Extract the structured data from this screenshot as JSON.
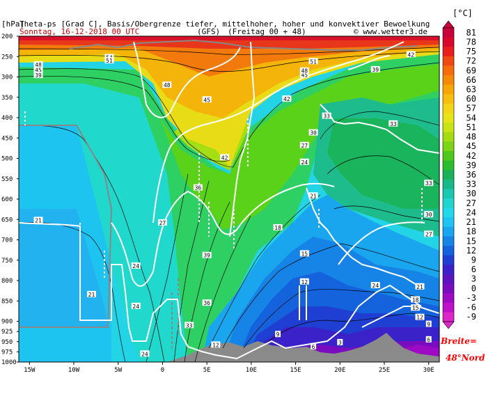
{
  "title_line1": "Theta-ps [Grad C], Basis/Obergrenze tiefer, mittelhoher, hoher und konvektiver Bewoelkung",
  "unit_left": "[hPa]",
  "date_line": "Sonntag, 16-12-2018  00 UTC",
  "model": "(GFS)",
  "forecast": "(Freitag 00 + 48)",
  "copyright": "© www.wetter3.de",
  "colorbar_unit": "[°C]",
  "latitude_note_1": "Breite=",
  "latitude_note_2": "48°Nord",
  "chart_data": {
    "type": "heatmap",
    "title": "Theta-ps [Grad C], Basis/Obergrenze tiefer, mittelhoher, hoher und konvektiver Bewoelkung",
    "x_ticks": [
      "15W",
      "10W",
      "5W",
      "0",
      "5E",
      "10E",
      "15E",
      "20E",
      "25E",
      "30E"
    ],
    "x_values": [
      -15,
      -10,
      -5,
      0,
      5,
      10,
      15,
      20,
      25,
      30
    ],
    "xlim": [
      -16.2,
      31.2
    ],
    "y_ticks": [
      "200",
      "250",
      "300",
      "350",
      "400",
      "450",
      "500",
      "550",
      "600",
      "650",
      "700",
      "750",
      "800",
      "850",
      "900",
      "925",
      "950",
      "975",
      "1000"
    ],
    "y_values": [
      200,
      250,
      300,
      350,
      400,
      450,
      500,
      550,
      600,
      650,
      700,
      750,
      800,
      850,
      900,
      925,
      950,
      975,
      1000
    ],
    "ylim": [
      200,
      1000
    ],
    "ylabel": "[hPa]",
    "colorbar_levels": [
      "81",
      "78",
      "75",
      "72",
      "69",
      "66",
      "63",
      "60",
      "57",
      "54",
      "51",
      "48",
      "45",
      "42",
      "39",
      "36",
      "33",
      "30",
      "27",
      "24",
      "21",
      "18",
      "15",
      "12",
      "9",
      "6",
      "3",
      "0",
      "-3",
      "-6",
      "-9"
    ],
    "colorbar_colors": [
      "#c8003c",
      "#d8082c",
      "#e81e1e",
      "#f04a14",
      "#f46c0c",
      "#f58a08",
      "#f7a608",
      "#f6be10",
      "#f2d418",
      "#e6e418",
      "#c8e414",
      "#a4dc14",
      "#7cd414",
      "#4ec81c",
      "#2cbc30",
      "#1ab05a",
      "#18b888",
      "#1ac8b0",
      "#20d4d0",
      "#22d8e8",
      "#20c4f2",
      "#1aa6ee",
      "#1684e6",
      "#1462dc",
      "#1f3ed2",
      "#3a22c8",
      "#5a14c0",
      "#7a0cc0",
      "#9c0ac4",
      "#be10c6",
      "#dc26c8"
    ],
    "contour_labels": [
      {
        "v": "48",
        "x": -14,
        "p": 270
      },
      {
        "v": "45",
        "x": -14,
        "p": 283
      },
      {
        "v": "39",
        "x": -14,
        "p": 296
      },
      {
        "v": "54",
        "x": -6,
        "p": 252
      },
      {
        "v": "51",
        "x": -6,
        "p": 260
      },
      {
        "v": "48",
        "x": 0.5,
        "p": 320
      },
      {
        "v": "45",
        "x": 5,
        "p": 356
      },
      {
        "v": "42",
        "x": 7,
        "p": 498
      },
      {
        "v": "42",
        "x": 14,
        "p": 354
      },
      {
        "v": "45",
        "x": 16,
        "p": 295
      },
      {
        "v": "48",
        "x": 16,
        "p": 285
      },
      {
        "v": "51",
        "x": 17,
        "p": 262
      },
      {
        "v": "39",
        "x": 24,
        "p": 282
      },
      {
        "v": "42",
        "x": 28,
        "p": 245
      },
      {
        "v": "30",
        "x": 17,
        "p": 437
      },
      {
        "v": "27",
        "x": 16,
        "p": 468
      },
      {
        "v": "24",
        "x": 16,
        "p": 509
      },
      {
        "v": "33",
        "x": 18.5,
        "p": 396
      },
      {
        "v": "33",
        "x": 26,
        "p": 415
      },
      {
        "v": "33",
        "x": 30,
        "p": 561
      },
      {
        "v": "30",
        "x": 30,
        "p": 638
      },
      {
        "v": "27",
        "x": 30,
        "p": 686
      },
      {
        "v": "21",
        "x": -14,
        "p": 652
      },
      {
        "v": "21",
        "x": -8,
        "p": 834
      },
      {
        "v": "27",
        "x": 0,
        "p": 658
      },
      {
        "v": "24",
        "x": -3,
        "p": 764
      },
      {
        "v": "24",
        "x": -3,
        "p": 863
      },
      {
        "v": "24",
        "x": -2,
        "p": 980
      },
      {
        "v": "36",
        "x": 4,
        "p": 572
      },
      {
        "v": "39",
        "x": 5,
        "p": 738
      },
      {
        "v": "36",
        "x": 5,
        "p": 855
      },
      {
        "v": "33",
        "x": 3,
        "p": 910
      },
      {
        "v": "18",
        "x": 13,
        "p": 670
      },
      {
        "v": "15",
        "x": 16,
        "p": 734
      },
      {
        "v": "12",
        "x": 16,
        "p": 803
      },
      {
        "v": "9",
        "x": 13,
        "p": 932
      },
      {
        "v": "6",
        "x": 17,
        "p": 962
      },
      {
        "v": "3",
        "x": 20,
        "p": 952
      },
      {
        "v": "21",
        "x": 17,
        "p": 592
      },
      {
        "v": "24",
        "x": 24,
        "p": 812
      },
      {
        "v": "21",
        "x": 29,
        "p": 815
      },
      {
        "v": "18",
        "x": 28.5,
        "p": 847
      },
      {
        "v": "15",
        "x": 28.5,
        "p": 867
      },
      {
        "v": "12",
        "x": 29,
        "p": 890
      },
      {
        "v": "9",
        "x": 30,
        "p": 907
      },
      {
        "v": "6",
        "x": 30,
        "p": 945
      },
      {
        "v": "12",
        "x": 6,
        "p": 958
      }
    ]
  }
}
